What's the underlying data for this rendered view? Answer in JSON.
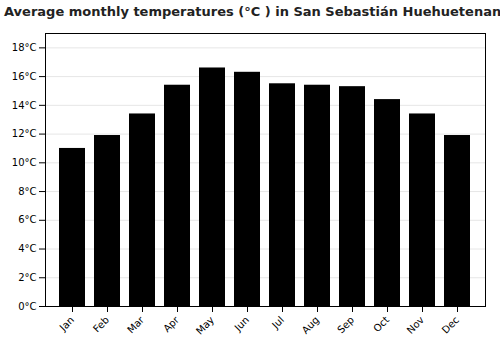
{
  "chart_data": {
    "type": "bar",
    "title": "Average monthly temperatures (°C ) in San Sebastián Huehuetenango",
    "categories": [
      "Jan",
      "Feb",
      "Mar",
      "Apr",
      "May",
      "Jun",
      "Jul",
      "Aug",
      "Sep",
      "Oct",
      "Nov",
      "Dec"
    ],
    "values": [
      11.0,
      11.9,
      13.4,
      15.4,
      16.6,
      16.3,
      15.5,
      15.4,
      15.3,
      14.4,
      13.4,
      11.9
    ],
    "ylim": [
      0,
      19
    ],
    "yticks": [
      {
        "value": 0,
        "label": "0°C"
      },
      {
        "value": 2,
        "label": "2°C"
      },
      {
        "value": 4,
        "label": "4°C"
      },
      {
        "value": 6,
        "label": "6°C"
      },
      {
        "value": 8,
        "label": "8°C"
      },
      {
        "value": 10,
        "label": "10°C"
      },
      {
        "value": 12,
        "label": "12°C"
      },
      {
        "value": 14,
        "label": "14°C"
      },
      {
        "value": 16,
        "label": "16°C"
      },
      {
        "value": 18,
        "label": "18°C"
      }
    ],
    "grid": true
  }
}
